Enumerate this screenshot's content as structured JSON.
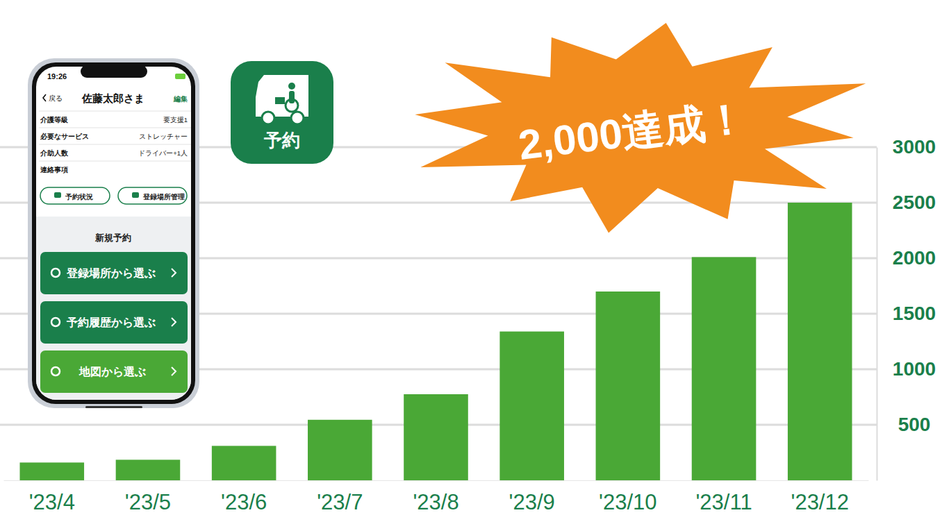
{
  "chart_data": {
    "type": "bar",
    "categories": [
      "'23/4",
      "'23/5",
      "'23/6",
      "'23/7",
      "'23/8",
      "'23/9",
      "'23/10",
      "'23/11",
      "'23/12"
    ],
    "values": [
      160,
      185,
      310,
      545,
      775,
      1340,
      1700,
      2010,
      2500
    ],
    "color": "#4aa836",
    "ylim": [
      0,
      3000
    ],
    "yticks": [
      500,
      1000,
      1500,
      2000,
      2500,
      3000
    ],
    "grid": true,
    "annotations": [
      "2,000達成！"
    ]
  },
  "app_icon": {
    "label": "予約"
  },
  "phone_screen": {
    "status_time": "19:26",
    "back": "戻る",
    "name": "佐藤太郎さま",
    "edit": "編集",
    "rows": [
      {
        "label": "介護等級",
        "value": "要支援1"
      },
      {
        "label": "必要なサービス",
        "value": "ストレッチャー"
      },
      {
        "label": "介助人数",
        "value": "ドライバー+1人"
      },
      {
        "label": "連絡事項"
      }
    ],
    "buttons": [
      "予約状況",
      "登録場所管理"
    ],
    "section": "新規予約",
    "menu": [
      "登録場所から選ぶ",
      "予約履歴から選ぶ",
      "地図から選ぶ"
    ]
  }
}
